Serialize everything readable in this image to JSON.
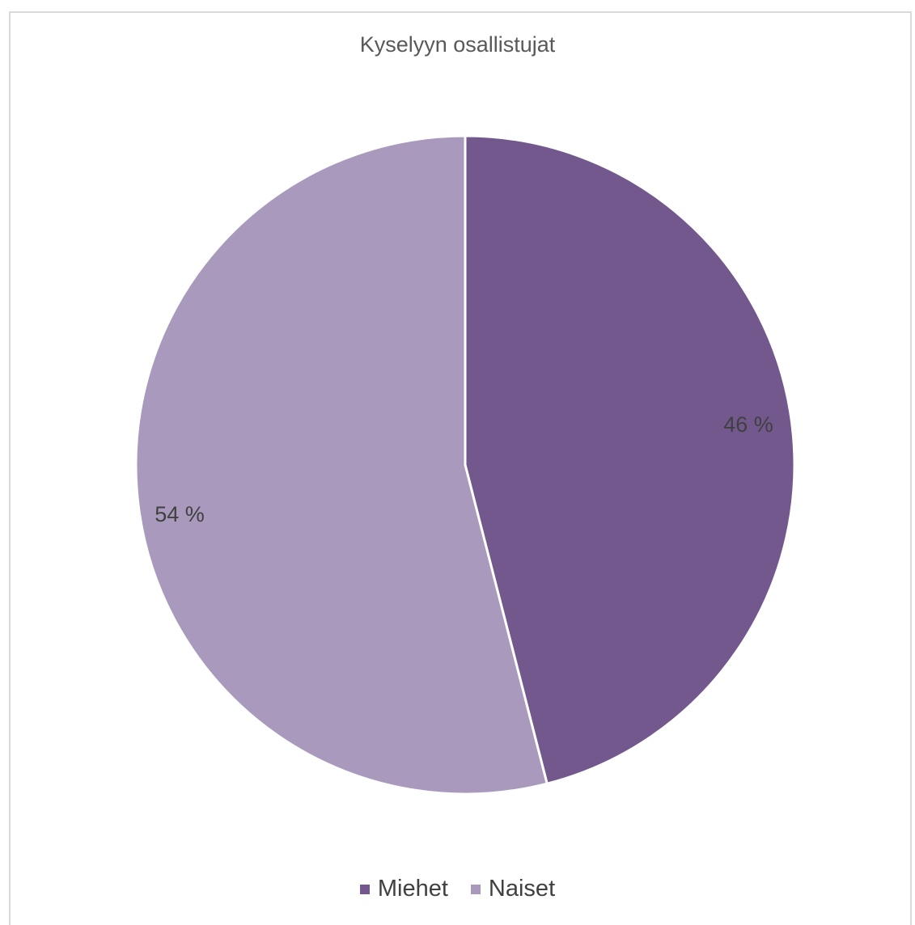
{
  "chart_data": {
    "type": "pie",
    "title": "Kyselyyn osallistujat",
    "categories": [
      "Miehet",
      "Naiset"
    ],
    "values": [
      46,
      54
    ],
    "data_labels": [
      "46 %",
      "54 %"
    ],
    "colors": [
      "#72588c",
      "#a99abd"
    ],
    "legend_position": "bottom"
  }
}
